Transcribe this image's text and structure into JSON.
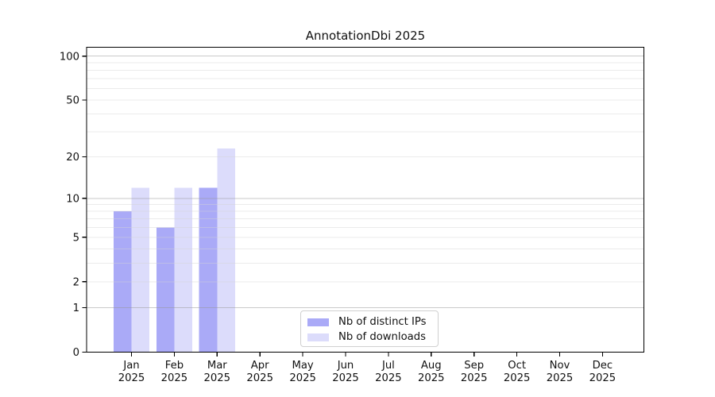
{
  "chart_data": {
    "type": "bar",
    "title": "AnnotationDbi 2025",
    "categories": [
      "Jan",
      "Feb",
      "Mar",
      "Apr",
      "May",
      "Jun",
      "Jul",
      "Aug",
      "Sep",
      "Oct",
      "Nov",
      "Dec"
    ],
    "x_year_label": "2025",
    "series": [
      {
        "name": "Nb of distinct IPs",
        "color": "#aaaaf7",
        "values": [
          8,
          6,
          12,
          0,
          0,
          0,
          0,
          0,
          0,
          0,
          0,
          0
        ]
      },
      {
        "name": "Nb of downloads",
        "color": "#dcdcfb",
        "values": [
          12,
          12,
          23,
          0,
          0,
          0,
          0,
          0,
          0,
          0,
          0,
          0
        ]
      }
    ],
    "yscale": "log1p",
    "ylim": [
      0,
      115
    ],
    "yticks": [
      0,
      1,
      2,
      5,
      10,
      20,
      50,
      100
    ],
    "y_major_gridlines": [
      1,
      10,
      100
    ],
    "y_minor_gridlines": [
      2,
      3,
      4,
      5,
      6,
      7,
      8,
      9,
      20,
      30,
      40,
      50,
      60,
      70,
      80,
      90
    ],
    "grid": true,
    "legend_position": "lower center",
    "colors": {
      "axis": "#000000",
      "text": "#111111",
      "major_grid": "#c8c8c8",
      "minor_grid": "#ececec"
    }
  }
}
